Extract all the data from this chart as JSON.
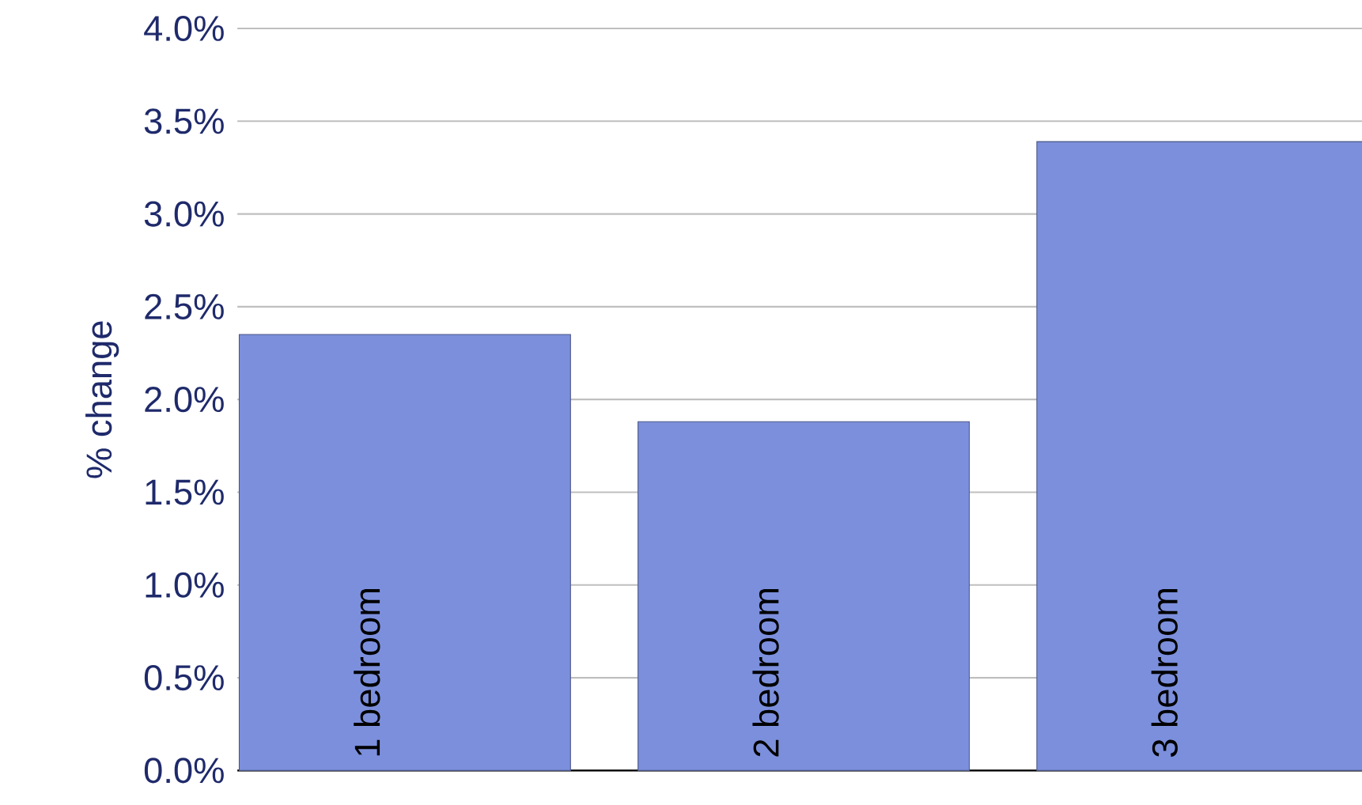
{
  "chart_data": {
    "type": "bar",
    "ylabel": "% change",
    "categories": [
      "1 bedroom",
      "2 bedroom",
      "3 bedroom"
    ],
    "values": [
      2.35,
      1.88,
      3.39
    ],
    "color": "#7b8fdc",
    "ylim": [
      0,
      4
    ],
    "yticks": [
      {
        "value": 0,
        "label": "0.0%"
      },
      {
        "value": 0.5,
        "label": "0.5%"
      },
      {
        "value": 1,
        "label": "1.0%"
      },
      {
        "value": 1.5,
        "label": "1.5%"
      },
      {
        "value": 2,
        "label": "2.0%"
      },
      {
        "value": 2.5,
        "label": "2.5%"
      },
      {
        "value": 3,
        "label": "3.0%"
      },
      {
        "value": 3.5,
        "label": "3.5%"
      },
      {
        "value": 4,
        "label": "4.0%"
      }
    ],
    "grid": "y"
  }
}
